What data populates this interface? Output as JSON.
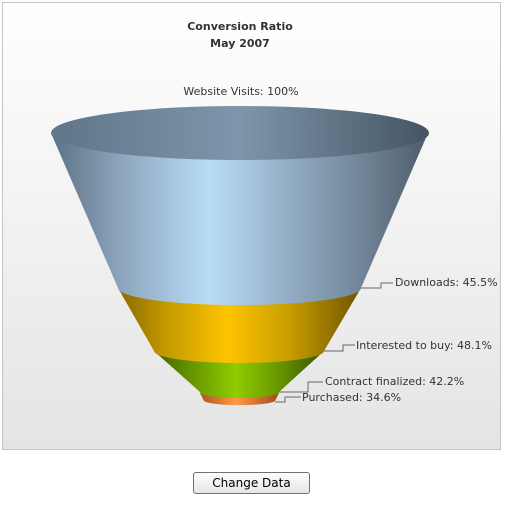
{
  "chart_data": {
    "type": "funnel",
    "title": "Conversion Ratio",
    "subtitle": "May 2007",
    "stages": [
      {
        "label": "Website Visits: 100%",
        "value": 100,
        "color": "#a8cbe8"
      },
      {
        "label": "Downloads: 45.5%",
        "value": 45.5,
        "color": "#f6c000"
      },
      {
        "label": "Interested to buy: 48.1%",
        "value": 48.1,
        "color": "#88c000"
      },
      {
        "label": "Contract finalized: 42.2%",
        "value": 42.2,
        "color": "#ff9640"
      },
      {
        "label": "Purchased: 34.6%",
        "value": 34.6,
        "color": "#ff9640"
      }
    ]
  },
  "controls": {
    "change_data_label": "Change Data"
  }
}
